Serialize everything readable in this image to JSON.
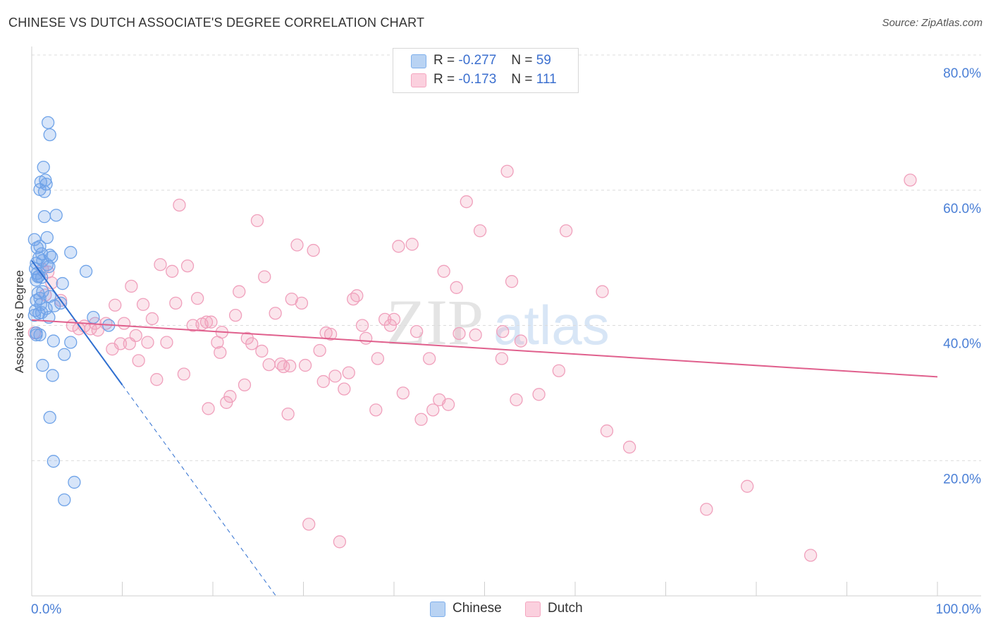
{
  "title": "CHINESE VS DUTCH ASSOCIATE'S DEGREE CORRELATION CHART",
  "source": "Source: ZipAtlas.com",
  "watermark": {
    "zip": "ZIP",
    "atlas": "atlas"
  },
  "legend": {
    "chinese": {
      "r_label": "R =",
      "r_value": "-0.277",
      "n_label": "N =",
      "n_value": "59",
      "color": "#7fb0ec"
    },
    "dutch": {
      "r_label": "R =",
      "r_value": "-0.173",
      "n_label": "N =",
      "n_value": "111",
      "color": "#f4a6c0"
    }
  },
  "bottom_legend": [
    "Chinese",
    "Dutch"
  ],
  "chart_data": {
    "type": "scatter",
    "title": "CHINESE VS DUTCH ASSOCIATE'S DEGREE CORRELATION CHART",
    "xlabel": "",
    "ylabel": "Associate's Degree",
    "xlim": [
      0,
      100
    ],
    "ylim": [
      0,
      80
    ],
    "x_tick_labels": [
      "0.0%",
      "100.0%"
    ],
    "y_ticks": [
      20,
      40,
      60,
      80
    ],
    "y_tick_labels": [
      "20.0%",
      "40.0%",
      "60.0%",
      "80.0%"
    ],
    "series": [
      {
        "name": "Chinese",
        "color": "#6fa3e8",
        "line_color": "#2f6fd0",
        "trend": {
          "x0": 0.0,
          "y0": 49.6,
          "x1": 10.0,
          "y1": 31.2,
          "dash_to_x": 27.0
        },
        "points": [
          [
            1.8,
            70.0
          ],
          [
            2.0,
            68.2
          ],
          [
            1.3,
            63.4
          ],
          [
            1.5,
            61.5
          ],
          [
            1.0,
            61.2
          ],
          [
            1.6,
            60.9
          ],
          [
            0.9,
            60.1
          ],
          [
            1.4,
            59.8
          ],
          [
            2.7,
            56.3
          ],
          [
            1.4,
            56.1
          ],
          [
            1.7,
            53.0
          ],
          [
            0.3,
            52.7
          ],
          [
            0.6,
            51.5
          ],
          [
            0.9,
            51.7
          ],
          [
            4.3,
            50.8
          ],
          [
            1.1,
            50.6
          ],
          [
            2.0,
            50.4
          ],
          [
            2.2,
            50.1
          ],
          [
            0.8,
            50.0
          ],
          [
            1.2,
            49.6
          ],
          [
            0.5,
            49.2
          ],
          [
            1.7,
            49.0
          ],
          [
            1.9,
            48.7
          ],
          [
            0.4,
            48.4
          ],
          [
            6.0,
            48.0
          ],
          [
            0.6,
            47.7
          ],
          [
            0.8,
            47.3
          ],
          [
            1.1,
            47.1
          ],
          [
            0.5,
            46.7
          ],
          [
            3.4,
            46.2
          ],
          [
            1.2,
            45.0
          ],
          [
            0.7,
            44.8
          ],
          [
            2.0,
            44.3
          ],
          [
            0.9,
            44.0
          ],
          [
            0.5,
            43.7
          ],
          [
            3.2,
            43.3
          ],
          [
            1.0,
            43.1
          ],
          [
            2.5,
            42.9
          ],
          [
            1.6,
            42.5
          ],
          [
            0.4,
            42.2
          ],
          [
            0.8,
            41.8
          ],
          [
            0.3,
            41.5
          ],
          [
            1.9,
            41.2
          ],
          [
            6.8,
            41.2
          ],
          [
            0.5,
            38.9
          ],
          [
            0.9,
            38.6
          ],
          [
            8.5,
            40.0
          ],
          [
            2.4,
            37.7
          ],
          [
            4.3,
            37.5
          ],
          [
            3.6,
            35.7
          ],
          [
            1.2,
            34.1
          ],
          [
            2.3,
            32.6
          ],
          [
            2.0,
            26.4
          ],
          [
            2.4,
            19.9
          ],
          [
            4.7,
            16.8
          ],
          [
            3.6,
            14.2
          ],
          [
            0.5,
            38.6
          ],
          [
            1.1,
            41.9
          ],
          [
            0.7,
            47.2
          ]
        ]
      },
      {
        "name": "Dutch",
        "color": "#f0a0bc",
        "line_color": "#e0608d",
        "trend": {
          "x0": 0.0,
          "y0": 40.8,
          "x1": 100.0,
          "y1": 32.4
        },
        "points": [
          [
            0.3,
            38.9
          ],
          [
            1.2,
            48.3
          ],
          [
            1.8,
            47.9
          ],
          [
            2.2,
            46.3
          ],
          [
            1.5,
            44.5
          ],
          [
            3.2,
            43.7
          ],
          [
            4.5,
            40.0
          ],
          [
            5.2,
            39.5
          ],
          [
            5.8,
            39.9
          ],
          [
            6.5,
            39.5
          ],
          [
            7.0,
            40.3
          ],
          [
            7.3,
            39.3
          ],
          [
            8.2,
            40.3
          ],
          [
            8.9,
            36.5
          ],
          [
            9.2,
            43.0
          ],
          [
            9.8,
            37.3
          ],
          [
            10.2,
            40.3
          ],
          [
            10.8,
            37.3
          ],
          [
            11.5,
            38.5
          ],
          [
            11.8,
            34.8
          ],
          [
            12.3,
            43.1
          ],
          [
            12.8,
            37.5
          ],
          [
            13.3,
            41.0
          ],
          [
            13.8,
            32.0
          ],
          [
            14.2,
            49.0
          ],
          [
            14.9,
            37.5
          ],
          [
            15.5,
            48.0
          ],
          [
            15.9,
            43.3
          ],
          [
            16.3,
            57.8
          ],
          [
            16.8,
            32.8
          ],
          [
            17.2,
            48.8
          ],
          [
            17.8,
            40.0
          ],
          [
            18.3,
            44.0
          ],
          [
            18.8,
            40.2
          ],
          [
            19.3,
            40.5
          ],
          [
            19.5,
            27.7
          ],
          [
            19.8,
            40.5
          ],
          [
            20.5,
            37.5
          ],
          [
            21.0,
            39.0
          ],
          [
            21.5,
            28.6
          ],
          [
            21.9,
            29.5
          ],
          [
            22.5,
            41.5
          ],
          [
            22.9,
            45.0
          ],
          [
            23.5,
            31.2
          ],
          [
            23.8,
            38.1
          ],
          [
            24.3,
            37.3
          ],
          [
            24.9,
            55.5
          ],
          [
            25.4,
            36.2
          ],
          [
            25.7,
            47.2
          ],
          [
            26.2,
            34.2
          ],
          [
            26.9,
            41.8
          ],
          [
            27.5,
            34.3
          ],
          [
            27.8,
            33.9
          ],
          [
            28.3,
            26.9
          ],
          [
            28.7,
            43.9
          ],
          [
            29.3,
            51.9
          ],
          [
            29.8,
            43.3
          ],
          [
            30.2,
            34.1
          ],
          [
            30.6,
            10.6
          ],
          [
            31.1,
            51.1
          ],
          [
            31.8,
            36.3
          ],
          [
            32.2,
            31.7
          ],
          [
            32.5,
            38.9
          ],
          [
            33.0,
            38.7
          ],
          [
            33.5,
            32.5
          ],
          [
            34.0,
            8.0
          ],
          [
            34.5,
            30.6
          ],
          [
            35.0,
            33.0
          ],
          [
            35.5,
            43.9
          ],
          [
            35.9,
            44.4
          ],
          [
            36.5,
            40.0
          ],
          [
            36.9,
            38.1
          ],
          [
            38.2,
            35.1
          ],
          [
            39.0,
            40.9
          ],
          [
            39.6,
            40.0
          ],
          [
            40.0,
            40.9
          ],
          [
            40.5,
            51.7
          ],
          [
            41.0,
            30.0
          ],
          [
            42.0,
            52.0
          ],
          [
            42.5,
            39.1
          ],
          [
            43.0,
            26.1
          ],
          [
            43.9,
            35.1
          ],
          [
            44.3,
            27.5
          ],
          [
            45.0,
            29.0
          ],
          [
            45.5,
            48.0
          ],
          [
            46.0,
            28.3
          ],
          [
            46.9,
            45.6
          ],
          [
            47.2,
            38.8
          ],
          [
            48.0,
            58.3
          ],
          [
            49.0,
            38.6
          ],
          [
            49.5,
            54.0
          ],
          [
            51.9,
            35.1
          ],
          [
            52.0,
            39.1
          ],
          [
            52.5,
            62.8
          ],
          [
            53.0,
            46.5
          ],
          [
            53.5,
            29.0
          ],
          [
            54.0,
            37.7
          ],
          [
            56.0,
            29.8
          ],
          [
            58.2,
            33.3
          ],
          [
            59.0,
            54.0
          ],
          [
            63.0,
            45.0
          ],
          [
            63.5,
            24.4
          ],
          [
            66.0,
            22.0
          ],
          [
            74.5,
            12.8
          ],
          [
            79.0,
            16.2
          ],
          [
            86.0,
            6.0
          ],
          [
            97.0,
            61.5
          ],
          [
            11.0,
            45.8
          ],
          [
            28.5,
            34.0
          ],
          [
            38.0,
            27.5
          ],
          [
            20.8,
            36.0
          ]
        ]
      }
    ]
  }
}
